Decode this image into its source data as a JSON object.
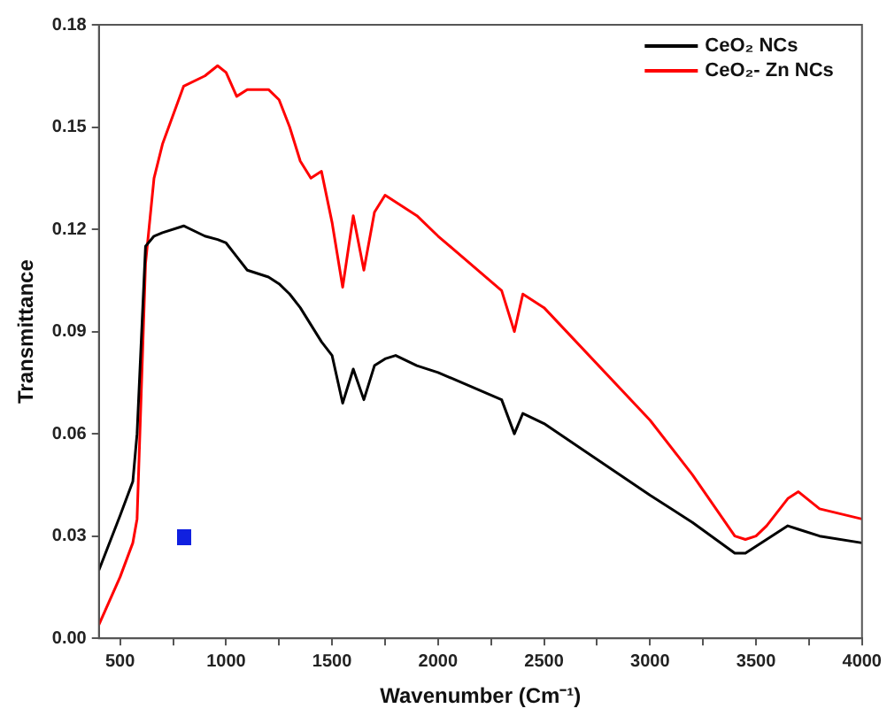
{
  "chart_data": {
    "type": "line",
    "xlabel": "Wavenumber (Cm⁻¹)",
    "ylabel": "Transmittance",
    "xlim": [
      400,
      4000
    ],
    "ylim": [
      0,
      0.18
    ],
    "xticks": [
      500,
      {
        "value": 750,
        "label": null
      },
      1000,
      {
        "value": 1250,
        "label": null
      },
      1500,
      {
        "value": 1750,
        "label": null
      },
      2000,
      {
        "value": 2250,
        "label": null
      },
      2500,
      {
        "value": 2750,
        "label": null
      },
      3000,
      {
        "value": 3250,
        "label": null
      },
      3500,
      {
        "value": 3750,
        "label": null
      },
      4000
    ],
    "yticks": [
      {
        "value": 0,
        "label": "0.00"
      },
      {
        "value": 0.03,
        "label": "0.03"
      },
      {
        "value": 0.06,
        "label": "0.06"
      },
      {
        "value": 0.09,
        "label": "0.09"
      },
      {
        "value": 0.12,
        "label": "0.12"
      },
      {
        "value": 0.15,
        "label": "0.15"
      },
      {
        "value": 0.18,
        "label": "0.18"
      }
    ],
    "grid": false,
    "legend": "top right",
    "marker": "none",
    "line_style": "solid",
    "x": [
      400,
      500,
      560,
      580,
      620,
      660,
      700,
      800,
      900,
      960,
      1000,
      1050,
      1100,
      1200,
      1250,
      1300,
      1350,
      1400,
      1450,
      1500,
      1550,
      1600,
      1650,
      1700,
      1750,
      1800,
      1900,
      2000,
      2300,
      2360,
      2400,
      2500,
      3000,
      3200,
      3400,
      3450,
      3500,
      3550,
      3650,
      3700,
      3800,
      4000
    ],
    "series": [
      {
        "name": "CeO₂ NCs",
        "color": "#000000",
        "values": [
          0.02,
          0.036,
          0.046,
          0.06,
          0.115,
          0.118,
          0.119,
          0.121,
          0.118,
          0.117,
          0.116,
          0.112,
          0.108,
          0.106,
          0.104,
          0.101,
          0.097,
          0.092,
          0.087,
          0.083,
          0.069,
          0.079,
          0.07,
          0.08,
          0.082,
          0.083,
          0.08,
          0.078,
          0.07,
          0.06,
          0.066,
          0.063,
          0.042,
          0.034,
          0.025,
          0.025,
          0.027,
          0.029,
          0.033,
          0.032,
          0.03,
          0.028
        ]
      },
      {
        "name": "CeO₂- Zn NCs",
        "color": "#ff0000",
        "values": [
          0.004,
          0.018,
          0.028,
          0.035,
          0.11,
          0.135,
          0.145,
          0.162,
          0.165,
          0.168,
          0.166,
          0.159,
          0.161,
          0.161,
          0.158,
          0.15,
          0.14,
          0.135,
          0.137,
          0.122,
          0.103,
          0.124,
          0.108,
          0.125,
          0.13,
          0.128,
          0.124,
          0.118,
          0.102,
          0.09,
          0.101,
          0.097,
          0.064,
          0.048,
          0.03,
          0.029,
          0.03,
          0.033,
          0.041,
          0.043,
          0.038,
          0.035
        ]
      }
    ]
  }
}
